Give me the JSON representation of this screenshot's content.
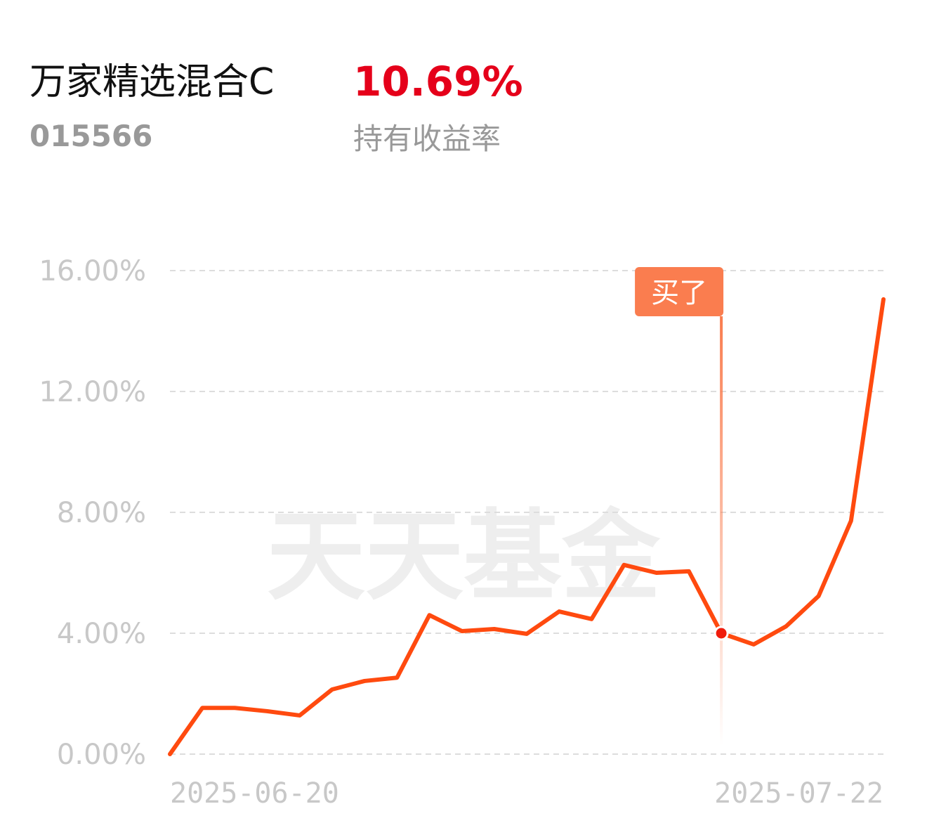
{
  "header": {
    "title": "万家精选混合C",
    "code": "015566",
    "return": {
      "value": 10.69,
      "label": "10.69%"
    },
    "return_caption": "持有收益率"
  },
  "chart_data": {
    "type": "line",
    "watermark": "天天基金",
    "categories": [
      "2025-06-20",
      null,
      null,
      null,
      null,
      null,
      null,
      null,
      null,
      null,
      null,
      null,
      null,
      null,
      null,
      null,
      null,
      null,
      null,
      null,
      null,
      null,
      "2025-07-22"
    ],
    "values": [
      0.0,
      1.53,
      1.53,
      1.42,
      1.28,
      2.14,
      2.42,
      2.53,
      4.6,
      4.07,
      4.14,
      3.98,
      4.72,
      4.47,
      6.26,
      6.0,
      6.05,
      4.0,
      3.63,
      4.23,
      5.23,
      7.72,
      15.05
    ],
    "color": "#ff4a0f",
    "ylim": [
      0,
      16
    ],
    "yticks": [
      {
        "value": 0,
        "label": "0.00%"
      },
      {
        "value": 4,
        "label": "4.00%"
      },
      {
        "value": 8,
        "label": "8.00%"
      },
      {
        "value": 12,
        "label": "12.00%"
      },
      {
        "value": 16,
        "label": "16.00%"
      }
    ],
    "grid": true,
    "buy_marker": {
      "label": "买了",
      "x_index": 17
    }
  }
}
